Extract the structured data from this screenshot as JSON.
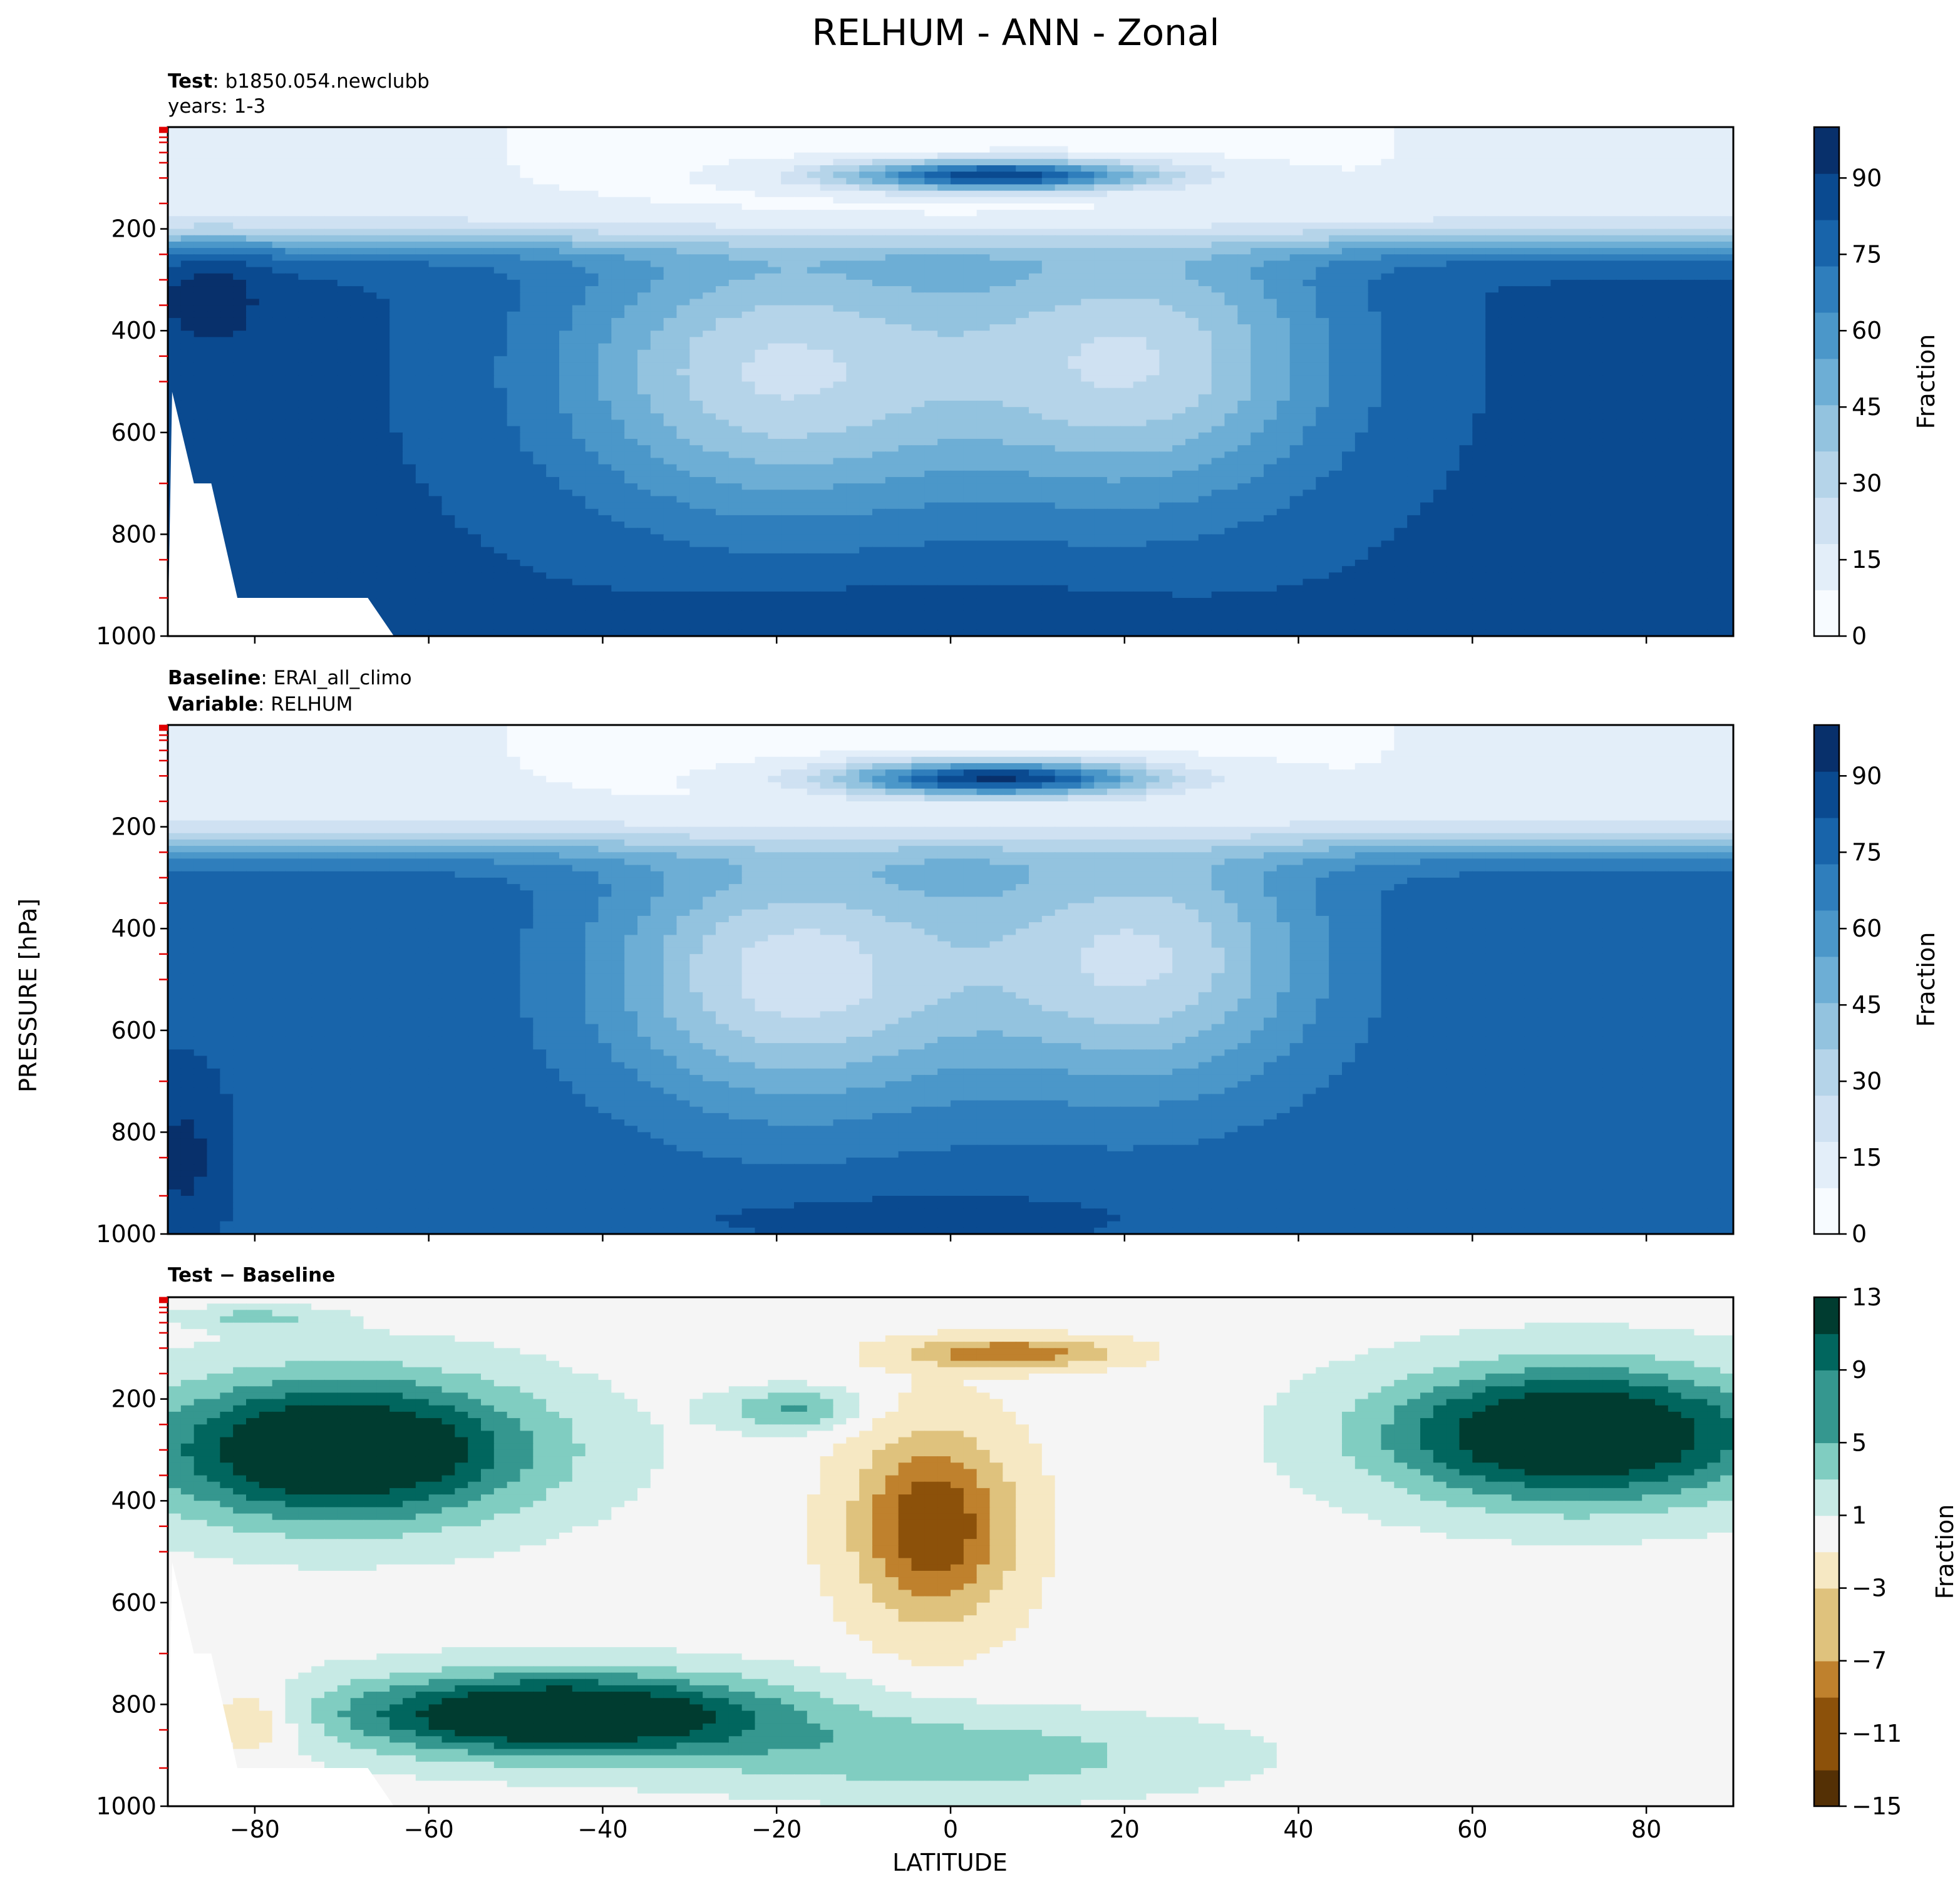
{
  "figure": {
    "title": "RELHUM - ANN - Zonal",
    "ylabel": "PRESSURE [hPa]",
    "xlabel": "LATITUDE",
    "colorbar_label": "Fraction"
  },
  "panels": [
    {
      "header_lines": [
        {
          "bold": "Test",
          "text": ": b1850.054.newclubb"
        },
        {
          "bold": "",
          "text": "years: 1-3"
        }
      ]
    },
    {
      "header_lines": [
        {
          "bold": "Baseline",
          "text": ": ERAI_all_climo"
        },
        {
          "bold": "Variable",
          "text": ": RELHUM"
        }
      ]
    },
    {
      "header_lines": [
        {
          "bold": "Test − Baseline",
          "text": ""
        }
      ]
    }
  ],
  "colors": {
    "blues": [
      "#f7fbff",
      "#e3eef9",
      "#cfe1f2",
      "#b5d4e9",
      "#93c3df",
      "#6daed5",
      "#4b97c9",
      "#2f7ebc",
      "#1864aa",
      "#0a4a90",
      "#08306b"
    ],
    "brbg_neg": [
      "#543005",
      "#8c510a",
      "#bf812d",
      "#dfc27d",
      "#f6e8c3"
    ],
    "brbg_mid": "#f5f5f5",
    "brbg_pos": [
      "#c7eae5",
      "#80cdc1",
      "#35978f",
      "#01665e",
      "#003c30"
    ]
  },
  "chart_data": [
    {
      "type": "heatmap",
      "title": "Test",
      "xlabel": "LATITUDE",
      "ylabel": "PRESSURE [hPa]",
      "xlim": [
        -90,
        90
      ],
      "ylim": [
        1000,
        0
      ],
      "xticks": [
        -80,
        -60,
        -40,
        -20,
        0,
        20,
        40,
        60,
        80
      ],
      "yticks": [
        200,
        400,
        600,
        800,
        1000
      ],
      "colorbar": {
        "label": "Fraction",
        "ticks": [
          0,
          15,
          30,
          45,
          60,
          75,
          90
        ],
        "range": [
          0,
          100
        ]
      },
      "features": [
        {
          "description": "dry upper troposphere",
          "lat_range": [
            -90,
            90
          ],
          "pressure_range": [
            0,
            200
          ],
          "value": 5
        },
        {
          "description": "tropical tropopause moist band",
          "lat_center": 5,
          "pressure": 100,
          "value": 85
        },
        {
          "description": "southern subtropical dry zone",
          "lat_center": -20,
          "pressure": 500,
          "value": 20
        },
        {
          "description": "northern subtropical dry zone",
          "lat_center": 22,
          "pressure": 470,
          "value": 22
        },
        {
          "description": "boundary layer",
          "lat_range": [
            -90,
            90
          ],
          "pressure_range": [
            850,
            1000
          ],
          "value": 82
        }
      ]
    },
    {
      "type": "heatmap",
      "title": "Baseline",
      "xlabel": "LATITUDE",
      "ylabel": "PRESSURE [hPa]",
      "xlim": [
        -90,
        90
      ],
      "ylim": [
        1000,
        0
      ],
      "xticks": [
        -80,
        -60,
        -40,
        -20,
        0,
        20,
        40,
        60,
        80
      ],
      "yticks": [
        200,
        400,
        600,
        800,
        1000
      ],
      "colorbar": {
        "label": "Fraction",
        "ticks": [
          0,
          15,
          30,
          45,
          60,
          75,
          90
        ],
        "range": [
          0,
          100
        ]
      },
      "features": [
        {
          "description": "dry upper troposphere",
          "lat_range": [
            -90,
            90
          ],
          "pressure_range": [
            0,
            200
          ],
          "value": 5
        },
        {
          "description": "tropical tropopause moist band",
          "lat_center": 5,
          "pressure": 110,
          "value": 88
        },
        {
          "description": "southern subtropical dry zone",
          "lat_center": -18,
          "pressure": 500,
          "value": 18
        },
        {
          "description": "northern subtropical dry zone",
          "lat_center": 22,
          "pressure": 460,
          "value": 20
        },
        {
          "description": "boundary layer",
          "lat_range": [
            -90,
            90
          ],
          "pressure_range": [
            850,
            1000
          ],
          "value": 80
        }
      ]
    },
    {
      "type": "heatmap",
      "title": "Test − Baseline",
      "xlabel": "LATITUDE",
      "ylabel": "PRESSURE [hPa]",
      "xlim": [
        -90,
        90
      ],
      "ylim": [
        1000,
        0
      ],
      "xticks": [
        -80,
        -60,
        -40,
        -20,
        0,
        20,
        40,
        60,
        80
      ],
      "yticks": [
        200,
        400,
        600,
        800,
        1000
      ],
      "colorbar": {
        "label": "Fraction",
        "ticks": [
          13,
          9,
          5,
          1,
          -3,
          -7,
          -11,
          -15
        ],
        "range": [
          -15,
          13
        ]
      },
      "features": [
        {
          "description": "SH upper positive band",
          "lat_range": [
            -90,
            -45
          ],
          "pressure_range": [
            150,
            400
          ],
          "value": 13
        },
        {
          "description": "NH upper positive band",
          "lat_range": [
            50,
            90
          ],
          "pressure_range": [
            150,
            380
          ],
          "value": 13
        },
        {
          "description": "SH lower positive band",
          "lat_range": [
            -70,
            -20
          ],
          "pressure_range": [
            750,
            900
          ],
          "value": 13
        },
        {
          "description": "tropical mid negative",
          "lat_center": 0,
          "pressure": 450,
          "value": -9
        },
        {
          "description": "tropopause negative",
          "lat_center": 7,
          "pressure": 110,
          "value": -9
        }
      ]
    }
  ]
}
